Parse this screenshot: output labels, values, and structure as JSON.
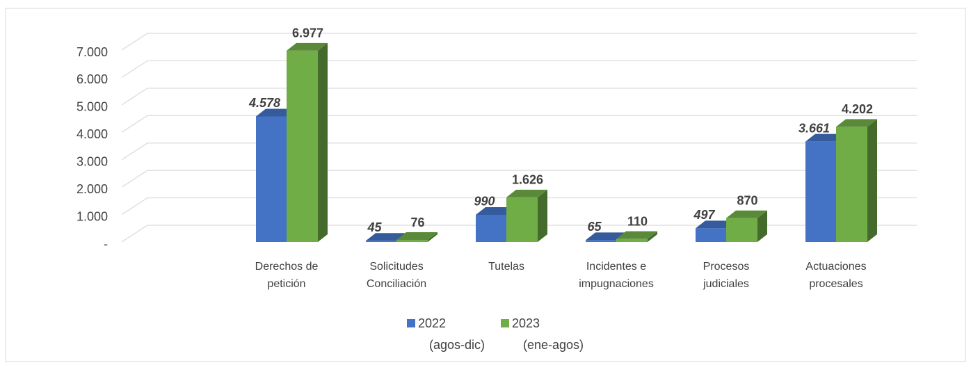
{
  "chart_data": {
    "type": "bar3d",
    "categories": [
      null,
      [
        "Derechos de",
        "petición"
      ],
      [
        "Solicitudes",
        "Conciliación"
      ],
      [
        "Tutelas"
      ],
      [
        "Incidentes e",
        "impugnaciones"
      ],
      [
        "Procesos",
        "judiciales"
      ],
      [
        "Actuaciones",
        "procesales"
      ]
    ],
    "series": [
      {
        "name": [
          "2022",
          "(agos-dic)"
        ],
        "color": "#4472c4",
        "values": [
          null,
          4578,
          45,
          990,
          65,
          497,
          3661
        ],
        "value_labels": [
          null,
          "4.578",
          "45",
          "990",
          "65",
          "497",
          "3.661"
        ]
      },
      {
        "name": [
          "2023",
          "(ene-agos)"
        ],
        "color": "#70ad47",
        "values": [
          null,
          6977,
          76,
          1626,
          110,
          870,
          4202
        ],
        "value_labels": [
          null,
          "6.977",
          "76",
          "1.626",
          "110",
          "870",
          "4.202"
        ]
      }
    ],
    "ylim": [
      0,
      7000
    ],
    "yticks": [
      {
        "value": 0,
        "label": "-"
      },
      {
        "value": 1000,
        "label": "1.000"
      },
      {
        "value": 2000,
        "label": "2.000"
      },
      {
        "value": 3000,
        "label": "3.000"
      },
      {
        "value": 4000,
        "label": "4.000"
      },
      {
        "value": 5000,
        "label": "5.000"
      },
      {
        "value": 6000,
        "label": "6.000"
      },
      {
        "value": 7000,
        "label": "7.000"
      }
    ],
    "grid": true,
    "legend": "bottom"
  }
}
